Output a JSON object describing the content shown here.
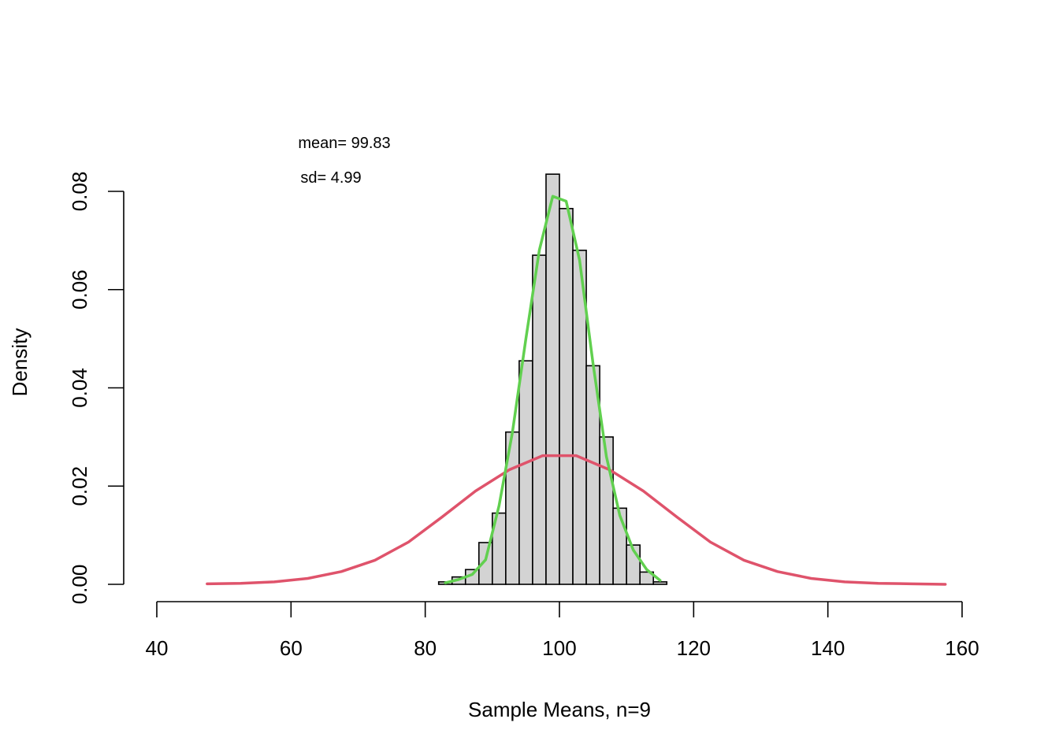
{
  "chart_data": {
    "type": "bar",
    "title": "",
    "xlabel": "Sample Means, n=9",
    "ylabel": "Density",
    "xlim": [
      40,
      160
    ],
    "ylim": [
      0,
      0.08
    ],
    "x_ticks": [
      "40",
      "60",
      "80",
      "100",
      "120",
      "140",
      "160"
    ],
    "y_ticks": [
      "0.00",
      "0.02",
      "0.04",
      "0.06",
      "0.08"
    ],
    "annotations": {
      "mean": "mean= 99.83",
      "sd": "sd= 4.99"
    },
    "histogram": {
      "bin_width": 2,
      "bins": [
        {
          "x0": 82,
          "x1": 84,
          "density": 0.0005
        },
        {
          "x0": 84,
          "x1": 86,
          "density": 0.0015
        },
        {
          "x0": 86,
          "x1": 88,
          "density": 0.003
        },
        {
          "x0": 88,
          "x1": 90,
          "density": 0.0085
        },
        {
          "x0": 90,
          "x1": 92,
          "density": 0.0145
        },
        {
          "x0": 92,
          "x1": 94,
          "density": 0.031
        },
        {
          "x0": 94,
          "x1": 96,
          "density": 0.0455
        },
        {
          "x0": 96,
          "x1": 98,
          "density": 0.067
        },
        {
          "x0": 98,
          "x1": 100,
          "density": 0.0835
        },
        {
          "x0": 100,
          "x1": 102,
          "density": 0.0765
        },
        {
          "x0": 102,
          "x1": 104,
          "density": 0.068
        },
        {
          "x0": 104,
          "x1": 106,
          "density": 0.0445
        },
        {
          "x0": 106,
          "x1": 108,
          "density": 0.03
        },
        {
          "x0": 108,
          "x1": 110,
          "density": 0.0155
        },
        {
          "x0": 110,
          "x1": 112,
          "density": 0.008
        },
        {
          "x0": 112,
          "x1": 114,
          "density": 0.0025
        },
        {
          "x0": 114,
          "x1": 116,
          "density": 0.0005
        }
      ]
    },
    "series": [
      {
        "color": "#df536b",
        "points": [
          [
            47.5,
            0.0001
          ],
          [
            52.5,
            0.0002
          ],
          [
            57.5,
            0.0005
          ],
          [
            62.5,
            0.0012
          ],
          [
            67.5,
            0.0026
          ],
          [
            72.5,
            0.0049
          ],
          [
            77.5,
            0.0086
          ],
          [
            82.5,
            0.0137
          ],
          [
            87.5,
            0.019
          ],
          [
            92.5,
            0.0233
          ],
          [
            97.5,
            0.0262
          ],
          [
            102.5,
            0.0262
          ],
          [
            107.5,
            0.0233
          ],
          [
            112.5,
            0.019
          ],
          [
            117.5,
            0.0137
          ],
          [
            122.5,
            0.0086
          ],
          [
            127.5,
            0.0049
          ],
          [
            132.5,
            0.0026
          ],
          [
            137.5,
            0.0012
          ],
          [
            142.5,
            0.0005
          ],
          [
            147.5,
            0.0002
          ],
          [
            152.5,
            0.0001
          ],
          [
            157.5,
            0.0
          ]
        ]
      },
      {
        "color": "#61d04f",
        "points": [
          [
            83,
            0.0003
          ],
          [
            85,
            0.001
          ],
          [
            87,
            0.002
          ],
          [
            89,
            0.005
          ],
          [
            91,
            0.016
          ],
          [
            93,
            0.031
          ],
          [
            95,
            0.05
          ],
          [
            97,
            0.068
          ],
          [
            99,
            0.079
          ],
          [
            101,
            0.078
          ],
          [
            103,
            0.066
          ],
          [
            105,
            0.045
          ],
          [
            107,
            0.026
          ],
          [
            109,
            0.014
          ],
          [
            111,
            0.007
          ],
          [
            113,
            0.003
          ],
          [
            115,
            0.0008
          ]
        ]
      }
    ],
    "grid": false,
    "legend": "none"
  }
}
